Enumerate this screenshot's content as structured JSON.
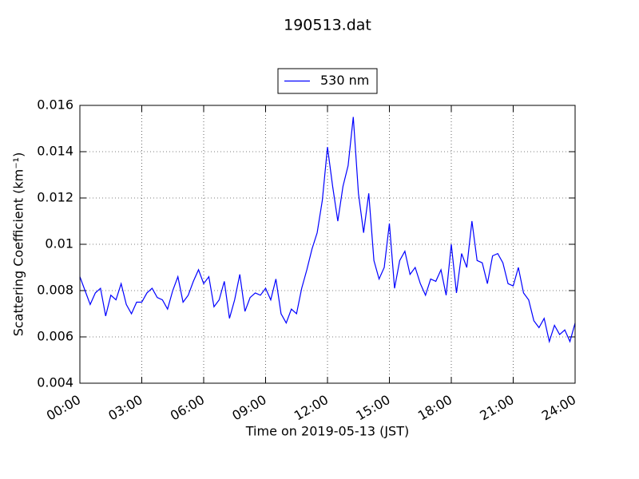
{
  "chart_data": {
    "type": "line",
    "title": "190513.dat",
    "x_label": "Time on 2019-05-13 (JST)",
    "y_label": "Scattering Coefficient (km⁻¹)",
    "x": [
      0,
      0.25,
      0.5,
      0.75,
      1,
      1.25,
      1.5,
      1.75,
      2,
      2.25,
      2.5,
      2.75,
      3,
      3.25,
      3.5,
      3.75,
      4,
      4.25,
      4.5,
      4.75,
      5,
      5.25,
      5.5,
      5.75,
      6,
      6.25,
      6.5,
      6.75,
      7,
      7.25,
      7.5,
      7.75,
      8,
      8.25,
      8.5,
      8.75,
      9,
      9.25,
      9.5,
      9.75,
      10,
      10.25,
      10.5,
      10.75,
      11,
      11.25,
      11.5,
      11.75,
      12,
      12.25,
      12.5,
      12.75,
      13,
      13.25,
      13.5,
      13.75,
      14,
      14.25,
      14.5,
      14.75,
      15,
      15.25,
      15.5,
      15.75,
      16,
      16.25,
      16.5,
      16.75,
      17,
      17.25,
      17.5,
      17.75,
      18,
      18.25,
      18.5,
      18.75,
      19,
      19.25,
      19.5,
      19.75,
      20,
      20.25,
      20.5,
      20.75,
      21,
      21.25,
      21.5,
      21.75,
      22,
      22.25,
      22.5,
      22.75,
      23,
      23.25,
      23.5,
      23.75,
      24
    ],
    "series": [
      {
        "name": "530 nm",
        "color": "#0000ff",
        "values": [
          0.0086,
          0.008,
          0.0074,
          0.0079,
          0.0081,
          0.0069,
          0.0078,
          0.0076,
          0.0083,
          0.0074,
          0.007,
          0.0075,
          0.0075,
          0.0079,
          0.0081,
          0.0077,
          0.0076,
          0.0072,
          0.008,
          0.0086,
          0.0075,
          0.0078,
          0.0084,
          0.0089,
          0.0083,
          0.0086,
          0.0073,
          0.0076,
          0.0084,
          0.0068,
          0.0076,
          0.0087,
          0.0071,
          0.0077,
          0.0079,
          0.0078,
          0.0081,
          0.0076,
          0.0085,
          0.007,
          0.0066,
          0.0072,
          0.007,
          0.0081,
          0.0089,
          0.0098,
          0.0105,
          0.0119,
          0.0142,
          0.0125,
          0.011,
          0.0125,
          0.0134,
          0.0155,
          0.0122,
          0.0105,
          0.0122,
          0.0093,
          0.0085,
          0.009,
          0.0109,
          0.0081,
          0.0093,
          0.0097,
          0.0087,
          0.009,
          0.0083,
          0.0078,
          0.0085,
          0.0084,
          0.0089,
          0.0078,
          0.01,
          0.0079,
          0.0096,
          0.009,
          0.011,
          0.0093,
          0.0092,
          0.0083,
          0.0095,
          0.0096,
          0.0092,
          0.0083,
          0.0082,
          0.009,
          0.0079,
          0.0076,
          0.0067,
          0.0064,
          0.0068,
          0.0058,
          0.0065,
          0.0061,
          0.0063,
          0.0058,
          0.0066
        ]
      }
    ],
    "xlim": [
      0,
      24
    ],
    "xticks": [
      {
        "value": 0,
        "label": "00:00"
      },
      {
        "value": 3,
        "label": "03:00"
      },
      {
        "value": 6,
        "label": "06:00"
      },
      {
        "value": 9,
        "label": "09:00"
      },
      {
        "value": 12,
        "label": "12:00"
      },
      {
        "value": 15,
        "label": "15:00"
      },
      {
        "value": 18,
        "label": "18:00"
      },
      {
        "value": 21,
        "label": "21:00"
      },
      {
        "value": 24,
        "label": "24:00"
      }
    ],
    "ylim": [
      0.004,
      0.016
    ],
    "yticks": [
      0.004,
      0.006,
      0.008,
      0.01,
      0.012,
      0.014,
      0.016
    ],
    "grid": true,
    "legend": "upper center"
  }
}
